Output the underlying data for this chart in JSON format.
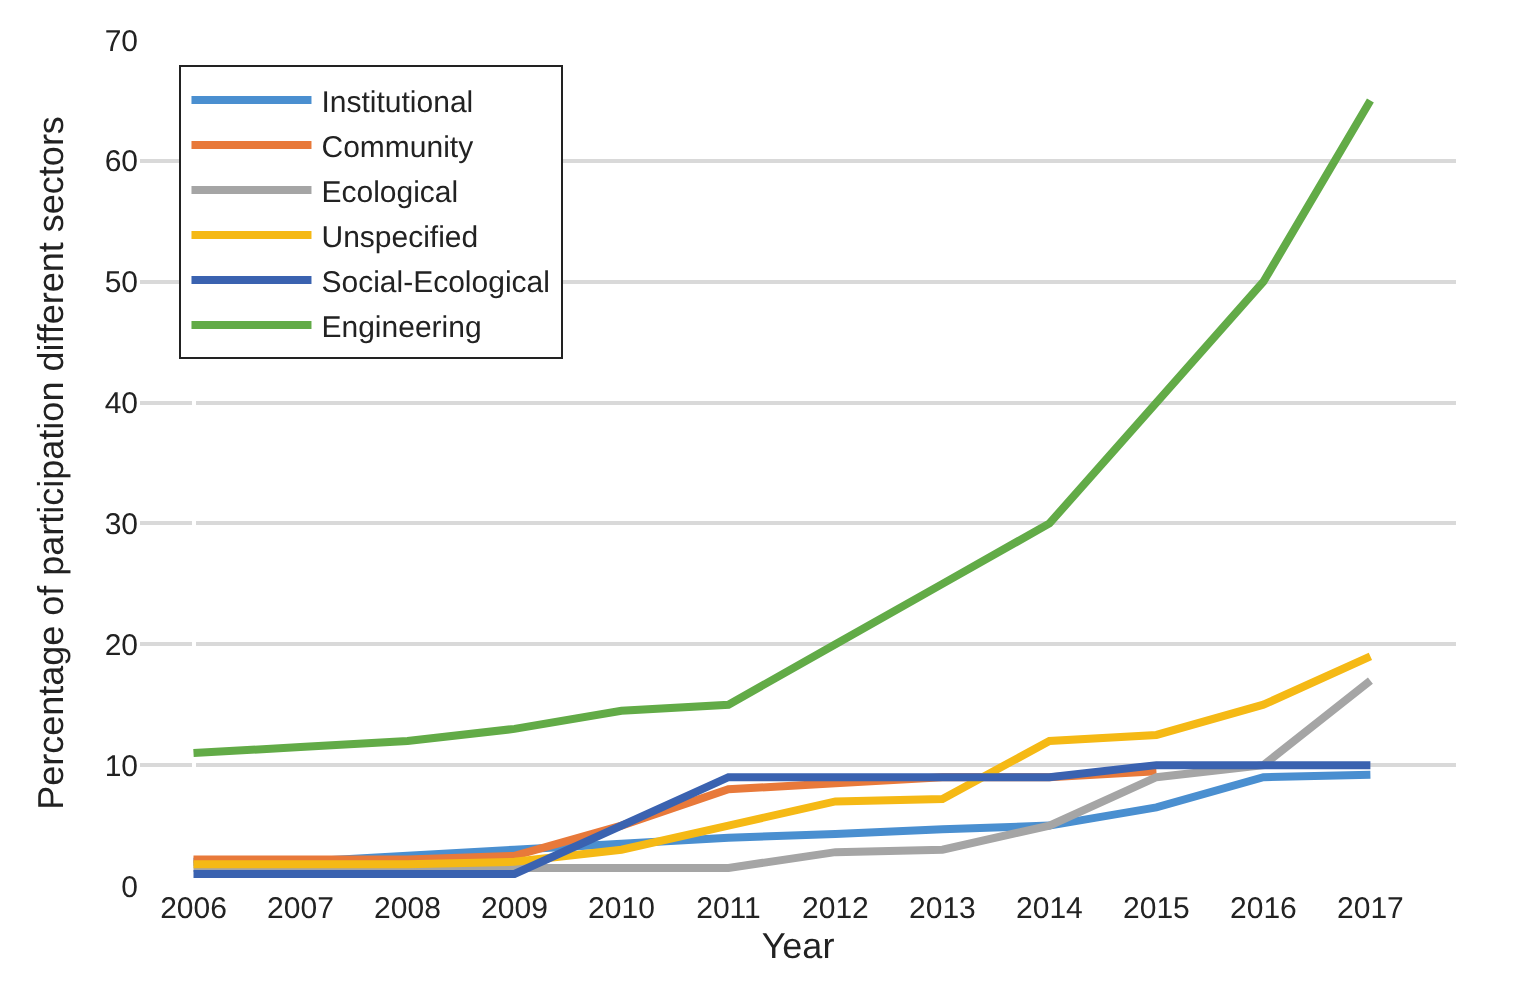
{
  "chart_data": {
    "type": "line",
    "xlabel": "Year",
    "ylabel": "Percentage of participation different sectors",
    "categories": [
      "2006",
      "2007",
      "2008",
      "2009",
      "2010",
      "2011",
      "2012",
      "2013",
      "2014",
      "2015",
      "2016",
      "2017"
    ],
    "series": [
      {
        "name": "Institutional",
        "color": "#4a8fd0",
        "values": [
          2,
          2,
          2.5,
          3,
          3.5,
          4,
          4.3,
          4.7,
          5,
          6.5,
          9,
          9.2
        ]
      },
      {
        "name": "Community",
        "color": "#e8793a",
        "values": [
          2.2,
          2.2,
          2.2,
          2.5,
          5,
          8,
          8.5,
          9,
          9,
          9.5,
          null,
          null
        ]
      },
      {
        "name": "Ecological",
        "color": "#a5a5a5",
        "values": [
          1.5,
          1.5,
          1.5,
          1.5,
          1.5,
          1.5,
          2.8,
          3,
          5,
          9,
          10,
          17
        ]
      },
      {
        "name": "Unspecified",
        "color": "#f5b915",
        "values": [
          1.8,
          1.8,
          1.8,
          2,
          3,
          5,
          7,
          7.2,
          12,
          12.5,
          15,
          19
        ]
      },
      {
        "name": "Social-Ecological",
        "color": "#3a62b0",
        "values": [
          1,
          1,
          1,
          1,
          5,
          9,
          9,
          9,
          9,
          10,
          10,
          10
        ]
      },
      {
        "name": "Engineering",
        "color": "#62ab47",
        "values": [
          11,
          11.5,
          12,
          13,
          14.5,
          15,
          20,
          25,
          30,
          40,
          50,
          65
        ]
      }
    ],
    "ylim": [
      0,
      70
    ],
    "yticks": [
      0,
      10,
      20,
      30,
      40,
      50,
      60,
      70
    ],
    "grid": "y",
    "legend": "top left"
  }
}
